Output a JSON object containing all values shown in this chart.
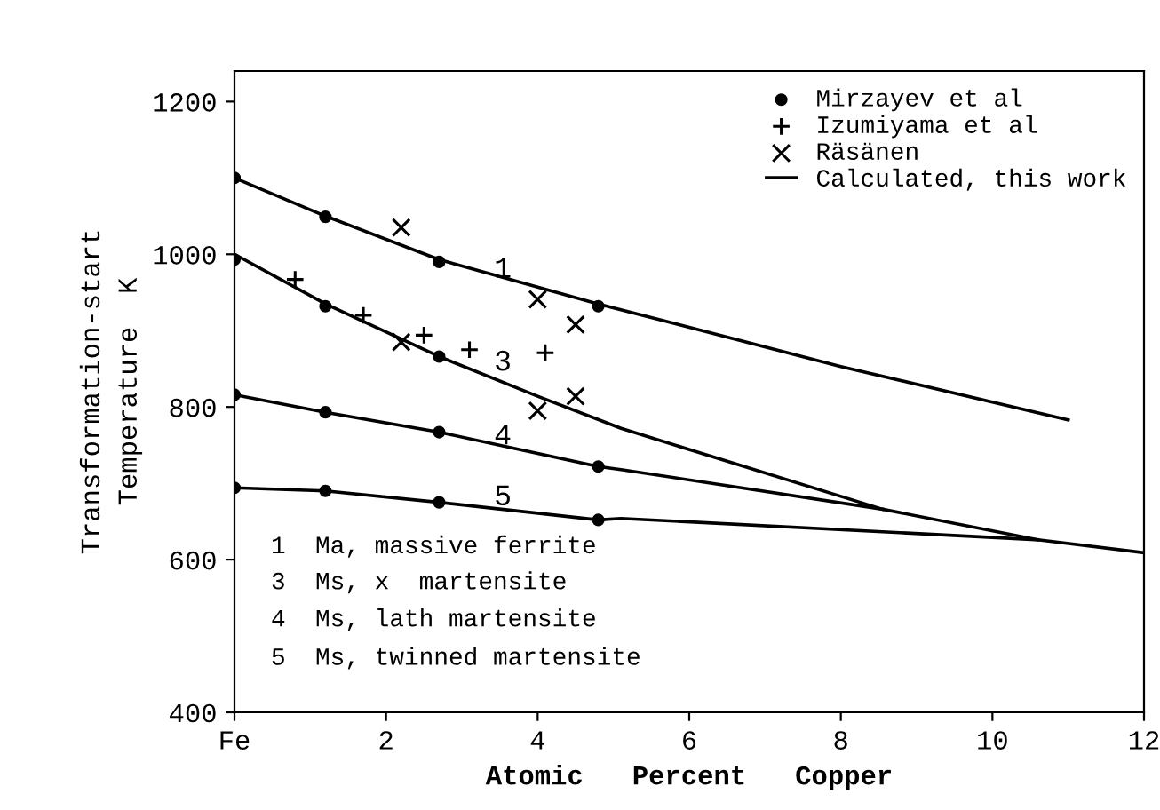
{
  "chart_data": {
    "type": "line",
    "xlabel": "Atomic   Percent   Copper",
    "ylabel": "Transformation-start\nTemperature  K",
    "xlim": [
      0,
      12
    ],
    "xticks": [
      {
        "value": 0,
        "label": "Fe"
      },
      2,
      4,
      6,
      8,
      10,
      12
    ],
    "ylim": [
      400,
      1240
    ],
    "yticks": [
      400,
      600,
      800,
      1000,
      1200
    ],
    "grid": false,
    "legend": "top right",
    "series": [
      {
        "name": "Mirzayev et al",
        "type": "scatter",
        "marker": "circle",
        "color": "#000000",
        "x": [
          0,
          1.2,
          2.7,
          4.8,
          0,
          1.2,
          2.7,
          0,
          1.2,
          2.7,
          4.8,
          0,
          1.2,
          2.7,
          4.8
        ],
        "values": [
          1100,
          1049,
          990,
          932,
          993,
          932,
          866,
          816,
          793,
          767,
          722,
          694,
          690,
          675,
          652
        ]
      },
      {
        "name": "Izumiyama et al",
        "type": "scatter",
        "marker": "plus",
        "color": "#000000",
        "x": [
          0.8,
          1.7,
          2.5,
          3.1,
          4.1
        ],
        "values": [
          967,
          920,
          894,
          875,
          871
        ]
      },
      {
        "name": "Räsänen",
        "type": "scatter",
        "marker": "cross",
        "color": "#000000",
        "x": [
          2.2,
          4.0,
          4.5,
          2.2,
          4.0,
          4.5
        ],
        "values": [
          1035,
          941,
          908,
          885,
          795,
          814
        ]
      },
      {
        "name": "Calculated, this work",
        "type": "line",
        "color": "#000000",
        "x": [
          0,
          1.2,
          2.7,
          4.8,
          8,
          11
        ],
        "values": [
          1100,
          1050,
          993,
          935,
          853,
          783
        ]
      },
      {
        "type": "line",
        "color": "#000000",
        "x": [
          0,
          1.2,
          2.7,
          4,
          5.1,
          6.3,
          8.55,
          10.6,
          12
        ],
        "values": [
          1000,
          935,
          866,
          814,
          772,
          735,
          666,
          626,
          609
        ]
      },
      {
        "type": "line",
        "color": "#000000",
        "x": [
          0,
          1.2,
          2.7,
          4.8,
          5.1,
          8.55
        ],
        "values": [
          816,
          793,
          767,
          722,
          718,
          666
        ]
      },
      {
        "type": "line",
        "color": "#000000",
        "x": [
          0,
          1.2,
          2.7,
          4.8,
          5.1,
          10.6
        ],
        "values": [
          694,
          690,
          675,
          652,
          654,
          626
        ]
      }
    ],
    "annotations": [
      "1",
      "3",
      "4",
      "5",
      "1  Ma, massive ferrite",
      "3  Ms, x  martensite",
      "4  Ms, lath martensite",
      "5  Ms, twinned martensite"
    ]
  }
}
